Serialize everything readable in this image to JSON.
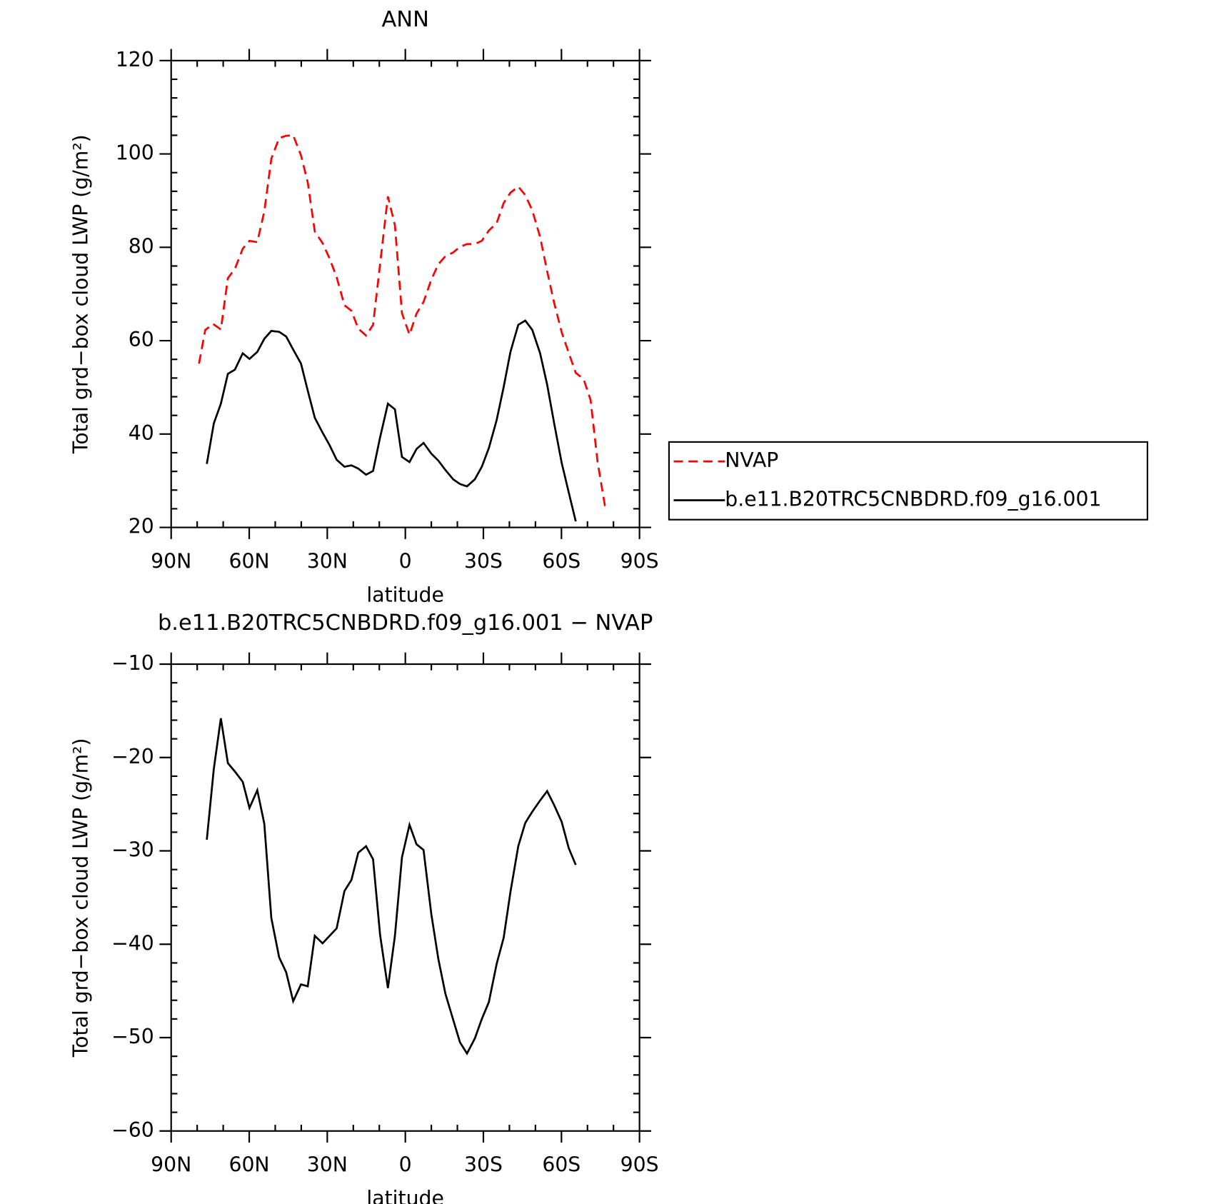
{
  "chart_data": [
    {
      "type": "line",
      "title": "ANN",
      "xlabel": "latitude",
      "ylabel": "Total grd−box cloud LWP (g/m²)",
      "xlim": [
        90,
        -90
      ],
      "ylim": [
        20,
        120
      ],
      "xticks": [
        {
          "value": 90,
          "label": "90N"
        },
        {
          "value": 60,
          "label": "60N"
        },
        {
          "value": 30,
          "label": "30N"
        },
        0,
        {
          "value": -30,
          "label": "30S"
        },
        {
          "value": -60,
          "label": "60S"
        },
        {
          "value": -90,
          "label": "90S"
        }
      ],
      "yticks": [
        20,
        40,
        60,
        80,
        100,
        120
      ],
      "xminorticks": [
        80,
        70,
        50,
        40,
        20,
        10,
        -10,
        -20,
        -40,
        -50,
        -70,
        -80
      ],
      "yminorticks": [
        24,
        28,
        32,
        36,
        44,
        48,
        52,
        56,
        64,
        68,
        72,
        76,
        84,
        88,
        92,
        96,
        104,
        108,
        112,
        116
      ],
      "legend": "right",
      "series": [
        {
          "name": "NVAP",
          "color": "#ff0000",
          "dash": true,
          "x": [
            79.3,
            76.9,
            73.9,
            70.9,
            68.2,
            65.5,
            62.5,
            59.9,
            56.9,
            54.2,
            51.5,
            48.5,
            45.8,
            43.1,
            40.1,
            37.5,
            34.8,
            31.8,
            29.1,
            26.4,
            23.4,
            20.7,
            18.1,
            15.1,
            12.4,
            9.7,
            6.7,
            4.0,
            1.3,
            -1.6,
            -4.3,
            -7.0,
            -10.0,
            -12.7,
            -15.4,
            -18.4,
            -21.0,
            -23.7,
            -26.7,
            -29.4,
            -32.1,
            -35.1,
            -37.8,
            -40.4,
            -43.4,
            -46.1,
            -48.8,
            -51.8,
            -54.5,
            -57.2,
            -60.1,
            -62.8,
            -65.5,
            -68.5,
            -71.2,
            -73.9,
            -76.9
          ],
          "values": [
            55.1,
            62.3,
            63.6,
            62.4,
            73.4,
            75.4,
            79.7,
            81.4,
            81.1,
            87.7,
            99.0,
            103.4,
            103.9,
            104.0,
            99.7,
            93.9,
            83.4,
            80.9,
            77.6,
            73.6,
            67.6,
            66.4,
            62.6,
            61.1,
            63.4,
            76.4,
            90.9,
            84.7,
            65.9,
            61.3,
            65.8,
            68.3,
            73.1,
            76.4,
            78.1,
            78.9,
            80.1,
            80.7,
            80.7,
            81.4,
            83.6,
            85.2,
            89.5,
            91.7,
            93.0,
            91.2,
            87.9,
            82.2,
            74.9,
            68.1,
            61.8,
            57.4,
            53.1,
            51.8,
            47.3,
            34.0,
            24.0
          ]
        },
        {
          "name": "b.e11.B20TRC5CNBDRD.f09_g16.001",
          "color": "#000000",
          "dash": false,
          "x": [
            76.3,
            73.6,
            70.9,
            68.2,
            65.5,
            62.5,
            59.9,
            56.9,
            54.2,
            51.5,
            48.5,
            45.8,
            43.1,
            40.1,
            37.5,
            34.8,
            31.8,
            29.1,
            26.4,
            23.4,
            20.7,
            18.1,
            15.1,
            12.4,
            9.7,
            6.7,
            4.0,
            1.3,
            -1.6,
            -4.3,
            -7.0,
            -10.0,
            -12.7,
            -15.4,
            -18.4,
            -21.0,
            -23.7,
            -26.7,
            -29.4,
            -32.1,
            -35.1,
            -37.8,
            -40.4,
            -43.4,
            -46.1,
            -48.8,
            -51.8,
            -54.5,
            -57.2,
            -60.1,
            -62.8,
            -65.5
          ],
          "values": [
            33.6,
            42.3,
            46.5,
            52.9,
            53.8,
            57.3,
            56.1,
            57.6,
            60.4,
            62.1,
            61.9,
            60.9,
            58.1,
            55.1,
            49.3,
            43.5,
            40.3,
            37.6,
            34.5,
            33.0,
            33.3,
            32.6,
            31.3,
            32.1,
            39.3,
            46.5,
            45.3,
            35.1,
            34.0,
            36.8,
            38.1,
            35.8,
            34.3,
            32.3,
            30.3,
            29.3,
            28.8,
            30.3,
            33.0,
            37.0,
            43.0,
            50.1,
            57.6,
            63.4,
            64.3,
            62.3,
            57.3,
            50.6,
            42.3,
            33.8,
            27.5,
            21.3
          ]
        }
      ]
    },
    {
      "type": "line",
      "title": "b.e11.B20TRC5CNBDRD.f09_g16.001 − NVAP",
      "xlabel": "latitude",
      "ylabel": "Total grd−box cloud LWP (g/m²)",
      "xlim": [
        90,
        -90
      ],
      "ylim": [
        -60,
        -10
      ],
      "xticks": [
        {
          "value": 90,
          "label": "90N"
        },
        {
          "value": 60,
          "label": "60N"
        },
        {
          "value": 30,
          "label": "30N"
        },
        0,
        {
          "value": -30,
          "label": "30S"
        },
        {
          "value": -60,
          "label": "60S"
        },
        {
          "value": -90,
          "label": "90S"
        }
      ],
      "yticks": [
        {
          "value": -60,
          "label": "−60"
        },
        {
          "value": -50,
          "label": "−50"
        },
        {
          "value": -40,
          "label": "−40"
        },
        {
          "value": -30,
          "label": "−30"
        },
        {
          "value": -20,
          "label": "−20"
        },
        {
          "value": -10,
          "label": "−10"
        }
      ],
      "xminorticks": [
        80,
        70,
        50,
        40,
        20,
        10,
        -10,
        -20,
        -40,
        -50,
        -70,
        -80
      ],
      "yminorticks": [
        -58,
        -56,
        -54,
        -52,
        -48,
        -46,
        -44,
        -42,
        -38,
        -36,
        -34,
        -32,
        -28,
        -26,
        -24,
        -22,
        -18,
        -16,
        -14,
        -12
      ],
      "series": [
        {
          "color": "#000000",
          "dash": false,
          "x": [
            76.3,
            73.6,
            70.9,
            68.2,
            65.5,
            62.5,
            59.9,
            56.9,
            54.2,
            51.5,
            48.5,
            45.8,
            43.1,
            40.1,
            37.5,
            34.8,
            31.8,
            29.1,
            26.4,
            23.4,
            20.7,
            18.1,
            15.1,
            12.4,
            9.7,
            6.7,
            4.0,
            1.3,
            -1.6,
            -4.3,
            -7.0,
            -10.0,
            -12.7,
            -15.4,
            -18.4,
            -21.0,
            -23.7,
            -26.7,
            -29.4,
            -32.1,
            -35.1,
            -37.8,
            -40.4,
            -43.4,
            -46.1,
            -48.8,
            -51.8,
            -54.5,
            -57.2,
            -60.1,
            -62.8,
            -65.5
          ],
          "values": [
            -28.8,
            -21.2,
            -15.8,
            -20.6,
            -21.5,
            -22.6,
            -25.4,
            -23.5,
            -27.1,
            -37.2,
            -41.4,
            -43.0,
            -46.1,
            -44.3,
            -44.5,
            -39.1,
            -39.9,
            -39.1,
            -38.3,
            -34.3,
            -33.1,
            -30.2,
            -29.5,
            -30.9,
            -39.0,
            -44.7,
            -39.1,
            -30.7,
            -27.2,
            -29.3,
            -29.9,
            -36.8,
            -41.6,
            -45.3,
            -48.1,
            -50.5,
            -51.7,
            -50.1,
            -48.0,
            -46.2,
            -42.1,
            -39.3,
            -34.4,
            -29.5,
            -27.0,
            -25.8,
            -24.6,
            -23.6,
            -25.1,
            -26.9,
            -29.7,
            -31.5
          ]
        }
      ]
    }
  ]
}
